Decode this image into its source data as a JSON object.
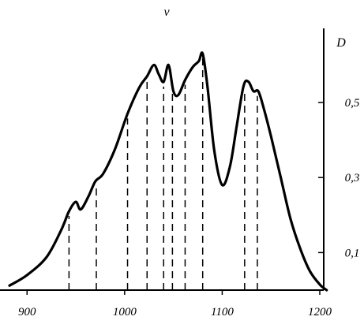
{
  "chart_data": {
    "type": "line",
    "title": "ν",
    "xlabel": "",
    "ylabel": "D",
    "x_ticks": [
      900,
      1000,
      1100,
      1200
    ],
    "x_tick_labels": [
      "900",
      "1000",
      "1100",
      "1200"
    ],
    "y_ticks": [
      0.1,
      0.3,
      0.5
    ],
    "y_tick_labels": [
      "0,1",
      "0,3",
      "0,5"
    ],
    "xlim": [
      880,
      1210
    ],
    "ylim": [
      0,
      0.66
    ],
    "grid": false,
    "series": [
      {
        "x": [
          882,
          900,
          920,
          935,
          943,
          950,
          955,
          963,
          970,
          978,
          990,
          1003,
          1015,
          1023,
          1030,
          1035,
          1040,
          1045,
          1050,
          1055,
          1062,
          1070,
          1076,
          1080,
          1085,
          1092,
          1100,
          1108,
          1115,
          1122,
          1127,
          1132,
          1137,
          1142,
          1150,
          1160,
          1170,
          1180,
          1190,
          1200,
          1207
        ],
        "y": [
          0.012,
          0.04,
          0.088,
          0.16,
          0.21,
          0.235,
          0.215,
          0.25,
          0.29,
          0.31,
          0.375,
          0.47,
          0.54,
          0.57,
          0.6,
          0.575,
          0.555,
          0.6,
          0.53,
          0.52,
          0.56,
          0.595,
          0.61,
          0.63,
          0.54,
          0.37,
          0.28,
          0.33,
          0.44,
          0.545,
          0.555,
          0.53,
          0.53,
          0.49,
          0.41,
          0.3,
          0.19,
          0.11,
          0.05,
          0.015,
          0.0
        ]
      }
    ],
    "band_markers": [
      943,
      971,
      1003,
      1023,
      1040,
      1049,
      1062,
      1080,
      1123,
      1136
    ]
  }
}
